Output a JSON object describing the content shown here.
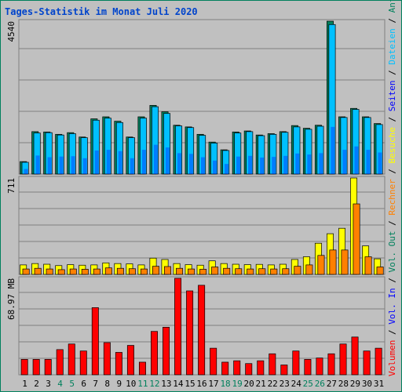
{
  "chart_data": {
    "type": "bar",
    "title": "Tages-Statistik im Monat Juli 2020",
    "background_color": "#c0c0c0",
    "border_color": "#00805c",
    "grid_color": "#808080",
    "days": [
      "1",
      "2",
      "3",
      "4",
      "5",
      "6",
      "7",
      "8",
      "9",
      "10",
      "11",
      "12",
      "13",
      "14",
      "15",
      "16",
      "17",
      "18",
      "19",
      "20",
      "21",
      "22",
      "23",
      "24",
      "25",
      "26",
      "27",
      "28",
      "29",
      "30",
      "31"
    ],
    "weekend_days": [
      "4",
      "5",
      "11",
      "12",
      "18",
      "19",
      "25",
      "26"
    ],
    "weekday_color": "#000000",
    "weekend_color": "#00805c",
    "panels": [
      {
        "name": "hits",
        "max_label": "4540",
        "ymax": 4540,
        "series": [
          {
            "name": "Anfragen",
            "color": "#00805c",
            "values": [
              370,
              1260,
              1250,
              1180,
              1230,
              1100,
              1640,
              1700,
              1570,
              1100,
              1700,
              2040,
              1850,
              1450,
              1400,
              1180,
              950,
              720,
              1250,
              1280,
              1160,
              1200,
              1260,
              1440,
              1360,
              1450,
              4540,
              1700,
              1950,
              1700,
              1500
            ]
          },
          {
            "name": "Dateien",
            "color": "#00c0ff",
            "values": [
              350,
              1220,
              1230,
              1160,
              1200,
              1080,
              1600,
              1660,
              1530,
              1080,
              1660,
              2000,
              1800,
              1430,
              1380,
              1150,
              920,
              700,
              1220,
              1260,
              1140,
              1180,
              1240,
              1400,
              1330,
              1420,
              4440,
              1680,
              1920,
              1680,
              1470
            ]
          },
          {
            "name": "Seiten",
            "color": "#0000ff",
            "values": [
              150,
              550,
              500,
              520,
              530,
              470,
              700,
              720,
              680,
              470,
              720,
              870,
              790,
              620,
              600,
              500,
              400,
              300,
              520,
              540,
              490,
              510,
              540,
              610,
              580,
              620,
              1400,
              720,
              820,
              720,
              640
            ]
          }
        ]
      },
      {
        "name": "visits",
        "max_label": "711",
        "ymax": 711,
        "series": [
          {
            "name": "Besuche",
            "color": "#ffff00",
            "values": [
              70,
              80,
              75,
              65,
              72,
              68,
              70,
              85,
              80,
              78,
              70,
              120,
              110,
              80,
              72,
              68,
              100,
              80,
              75,
              72,
              74,
              70,
              75,
              110,
              130,
              230,
              300,
              340,
              711,
              210,
              115
            ]
          },
          {
            "name": "Rechner",
            "color": "#ff8000",
            "values": [
              40,
              45,
              40,
              35,
              40,
              38,
              40,
              48,
              45,
              42,
              40,
              60,
              58,
              45,
              40,
              38,
              55,
              45,
              42,
              40,
              42,
              40,
              42,
              60,
              70,
              140,
              180,
              180,
              520,
              130,
              55
            ]
          }
        ]
      },
      {
        "name": "volume",
        "max_label": "68.97 MB",
        "ymax": 68.97,
        "series": [
          {
            "name": "Vol. Out",
            "color": "#0000ff",
            "values": [
              0,
              0,
              0,
              0,
              0,
              0,
              0,
              0,
              0,
              0,
              0,
              0,
              0,
              0,
              0,
              0,
              0,
              0,
              0,
              0,
              0,
              0,
              0,
              0,
              0,
              0,
              0,
              0,
              0,
              0,
              0
            ]
          },
          {
            "name": "Vol. In",
            "color": "#0000ff",
            "values": [
              0,
              0,
              0,
              0,
              0,
              0,
              0,
              0,
              0,
              0,
              0,
              0,
              0,
              0,
              0,
              0,
              0,
              0,
              0,
              0,
              0,
              0,
              0,
              0,
              0,
              0,
              0,
              0,
              0,
              0,
              0
            ]
          },
          {
            "name": "Volumen",
            "color": "#ff0000",
            "values": [
              11,
              11,
              11,
              18,
              22,
              17,
              48,
              23,
              16,
              21,
              9,
              31,
              34,
              69,
              60,
              64,
              19,
              9,
              10,
              8,
              10,
              15,
              7,
              17,
              11,
              12,
              15,
              22,
              27,
              17,
              19
            ]
          }
        ]
      }
    ],
    "legend_right": [
      {
        "text": "Anfragen",
        "color": "#00805c"
      },
      {
        "text": " / ",
        "color": "#000000"
      },
      {
        "text": "Dateien",
        "color": "#00c0ff"
      },
      {
        "text": " / ",
        "color": "#000000"
      },
      {
        "text": "Seiten",
        "color": "#0000ff"
      },
      {
        "text": " / ",
        "color": "#000000"
      },
      {
        "text": "Besuche",
        "color": "#ffff00"
      },
      {
        "text": " / ",
        "color": "#000000"
      },
      {
        "text": "Rechner",
        "color": "#ff8000"
      },
      {
        "text": " / ",
        "color": "#000000"
      },
      {
        "text": "Vol. Out",
        "color": "#00805c"
      },
      {
        "text": " / ",
        "color": "#000000"
      },
      {
        "text": "Vol. In",
        "color": "#0000ff"
      },
      {
        "text": " / ",
        "color": "#000000"
      },
      {
        "text": "Volumen",
        "color": "#ff0000"
      }
    ]
  }
}
